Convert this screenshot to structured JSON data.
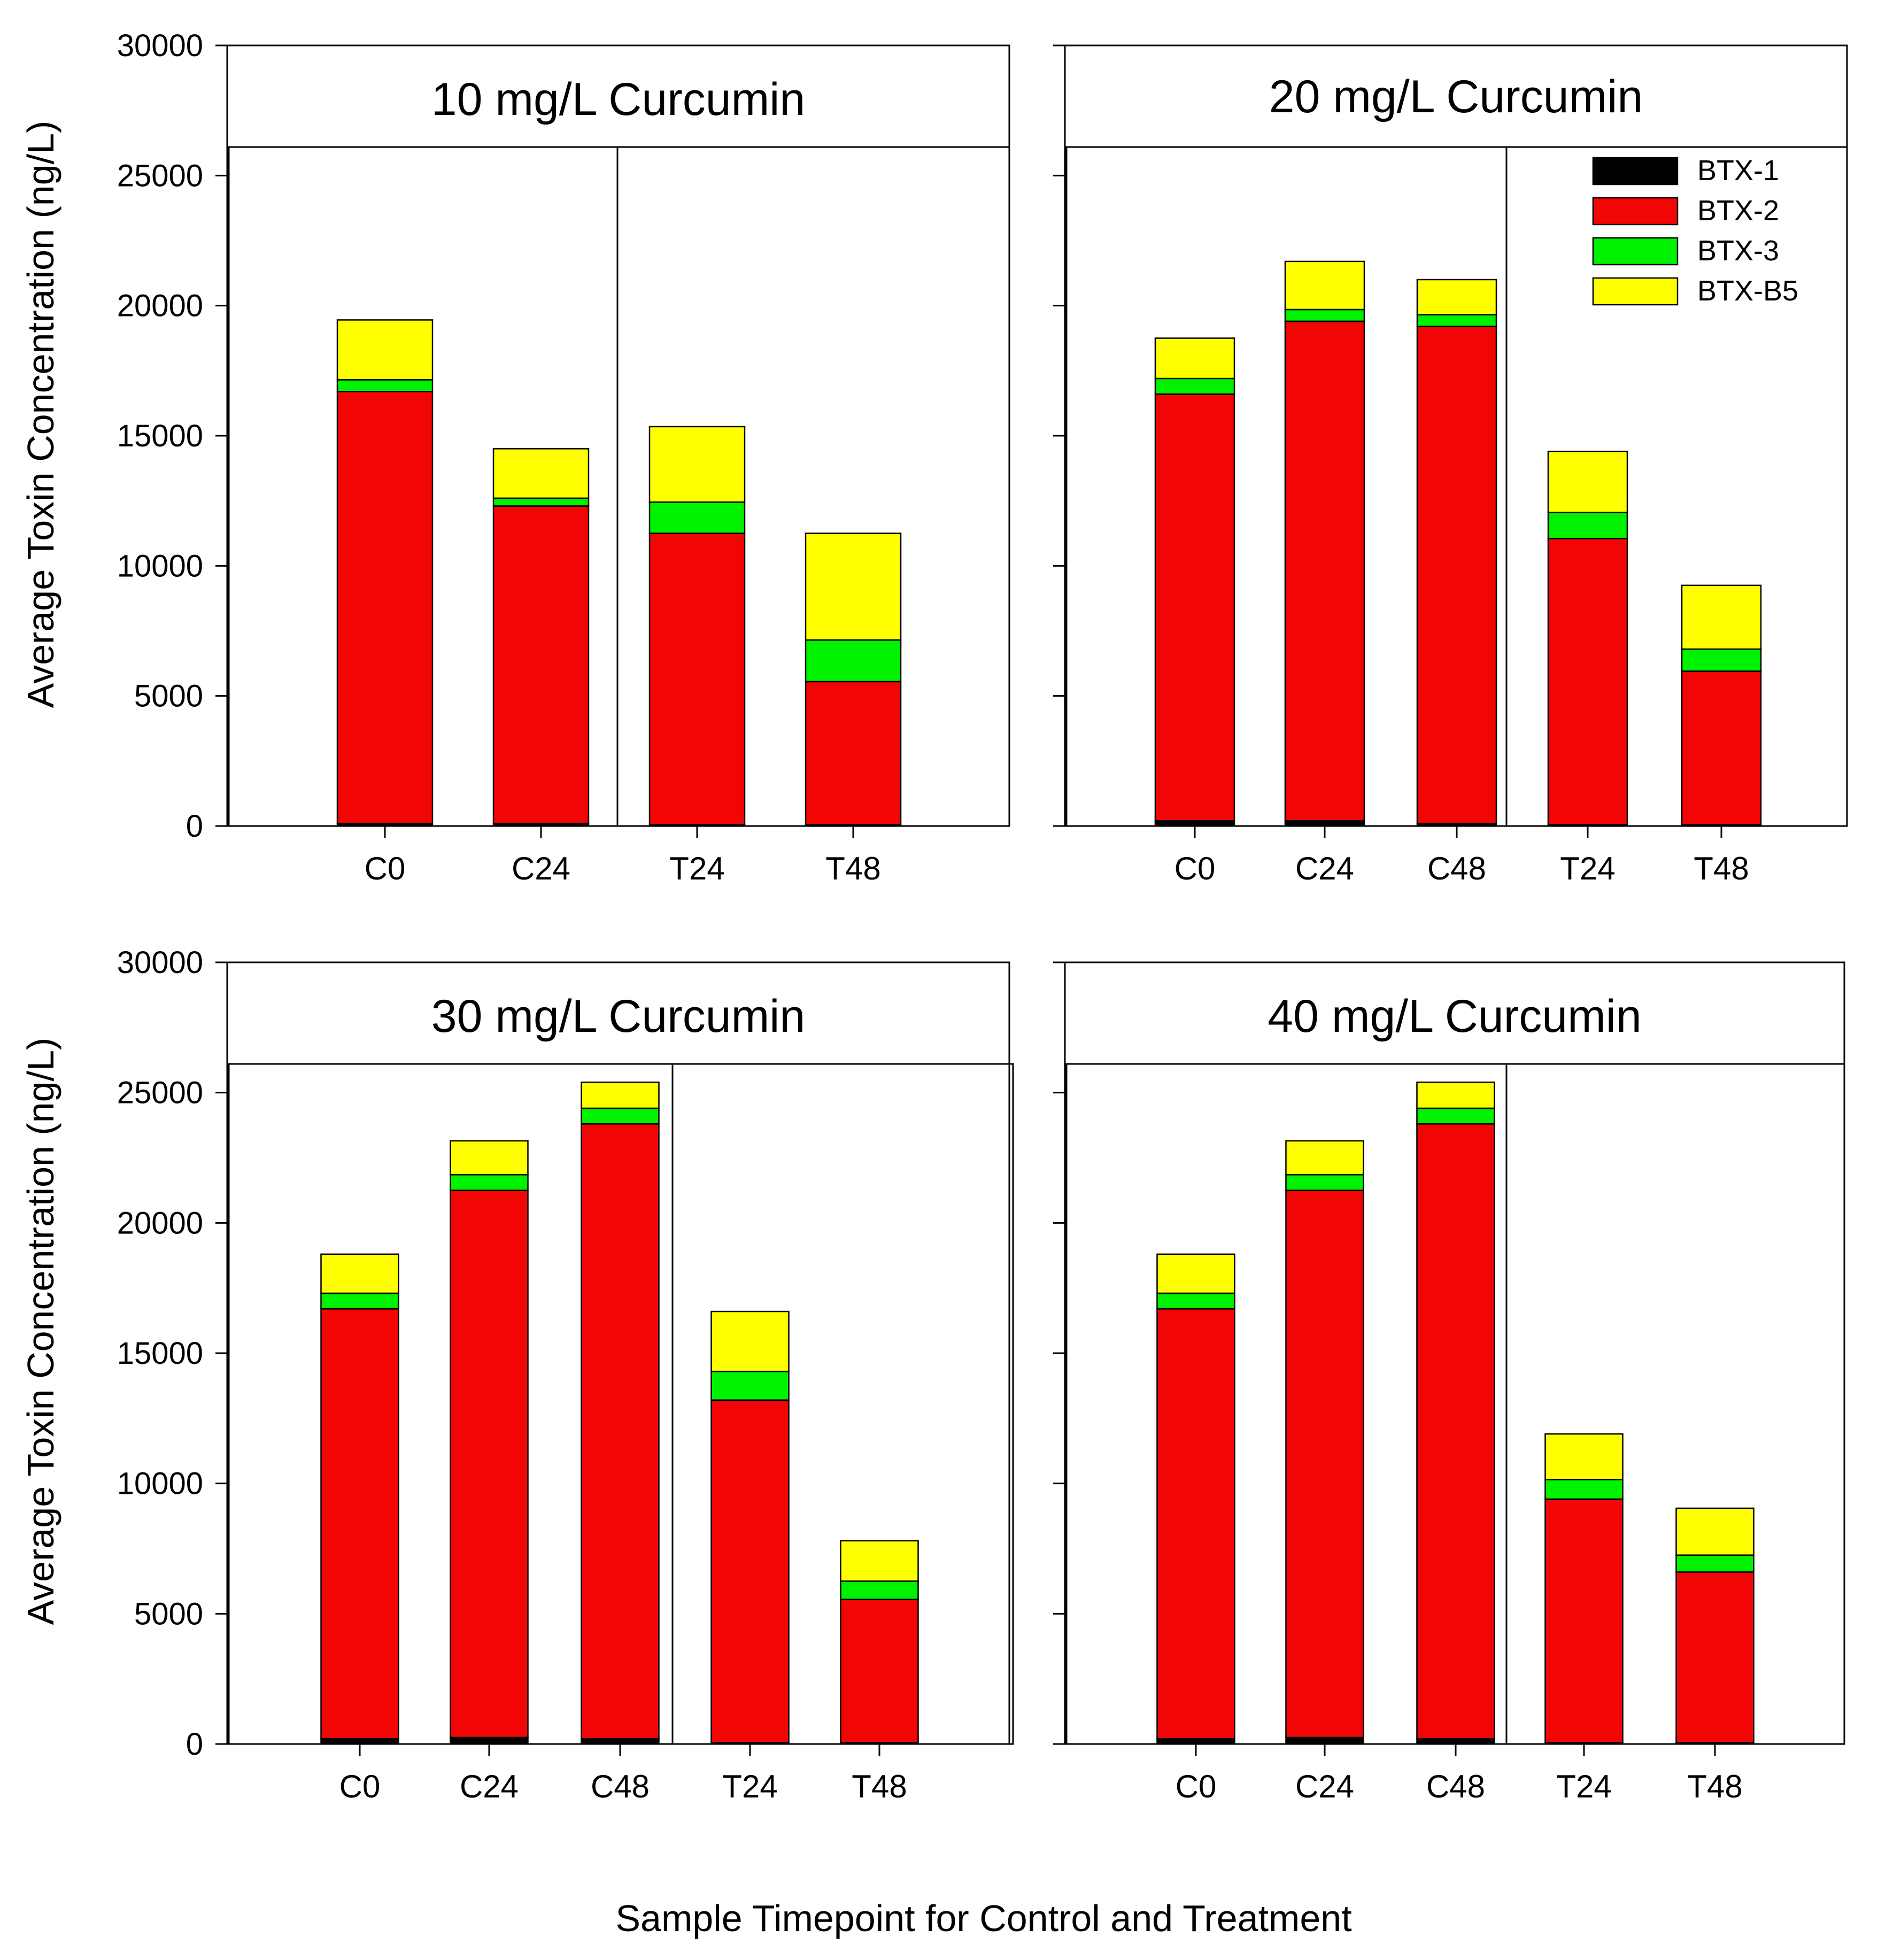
{
  "figure": {
    "ylabel": "Average Toxin Concentration (ng/L)",
    "xlabel": "Sample Timepoint for Control and Treatment",
    "colors": {
      "BTX-1": "#000000",
      "BTX-2": "#f20505",
      "BTX-3": "#00f200",
      "BTX-B5": "#ffff00"
    }
  },
  "chart_data": [
    {
      "type": "bar",
      "stacked": true,
      "title": "10 mg/L Curcumin",
      "xlabel": "Sample Timepoint for Control and Treatment",
      "ylabel": "Average Toxin Concentration (ng/L)",
      "ylim": [
        0,
        30000
      ],
      "yticks": [
        0,
        5000,
        10000,
        15000,
        20000,
        25000,
        30000
      ],
      "grid": false,
      "legend": "none",
      "categories": [
        "C0",
        "C24",
        "T24",
        "T48"
      ],
      "series": [
        {
          "name": "BTX-1",
          "values": [
            100,
            100,
            50,
            50
          ]
        },
        {
          "name": "BTX-2",
          "values": [
            16600,
            12200,
            11200,
            5500
          ]
        },
        {
          "name": "BTX-3",
          "values": [
            450,
            300,
            1200,
            1600
          ]
        },
        {
          "name": "BTX-B5",
          "values": [
            2300,
            1900,
            2900,
            4100
          ]
        }
      ]
    },
    {
      "type": "bar",
      "stacked": true,
      "title": "20 mg/L Curcumin",
      "xlabel": "Sample Timepoint for Control and Treatment",
      "ylabel": "Average Toxin Concentration (ng/L)",
      "ylim": [
        0,
        30000
      ],
      "yticks": [
        0,
        5000,
        10000,
        15000,
        20000,
        25000,
        30000
      ],
      "grid": false,
      "legend": "top-right",
      "categories": [
        "C0",
        "C24",
        "C48",
        "T24",
        "T48"
      ],
      "series": [
        {
          "name": "BTX-1",
          "values": [
            200,
            200,
            100,
            50,
            50
          ]
        },
        {
          "name": "BTX-2",
          "values": [
            16400,
            19200,
            19100,
            11000,
            5900
          ]
        },
        {
          "name": "BTX-3",
          "values": [
            600,
            450,
            450,
            1000,
            850
          ]
        },
        {
          "name": "BTX-B5",
          "values": [
            1550,
            1850,
            1350,
            2350,
            2450
          ]
        }
      ]
    },
    {
      "type": "bar",
      "stacked": true,
      "title": "30 mg/L Curcumin",
      "xlabel": "Sample Timepoint for Control and Treatment",
      "ylabel": "Average Toxin Concentration (ng/L)",
      "ylim": [
        0,
        30000
      ],
      "yticks": [
        0,
        5000,
        10000,
        15000,
        20000,
        25000,
        30000
      ],
      "grid": false,
      "legend": "none",
      "categories": [
        "C0",
        "C24",
        "C48",
        "T24",
        "T48"
      ],
      "series": [
        {
          "name": "BTX-1",
          "values": [
            200,
            250,
            200,
            50,
            50
          ]
        },
        {
          "name": "BTX-2",
          "values": [
            16500,
            21000,
            23600,
            13150,
            5500
          ]
        },
        {
          "name": "BTX-3",
          "values": [
            600,
            600,
            600,
            1100,
            700
          ]
        },
        {
          "name": "BTX-B5",
          "values": [
            1500,
            1300,
            1000,
            2300,
            1550
          ]
        }
      ]
    },
    {
      "type": "bar",
      "stacked": true,
      "title": "40 mg/L Curcumin",
      "xlabel": "Sample Timepoint for Control and Treatment",
      "ylabel": "Average Toxin Concentration (ng/L)",
      "ylim": [
        0,
        30000
      ],
      "yticks": [
        0,
        5000,
        10000,
        15000,
        20000,
        25000,
        30000
      ],
      "grid": false,
      "legend": "none",
      "categories": [
        "C0",
        "C24",
        "C48",
        "T24",
        "T48"
      ],
      "series": [
        {
          "name": "BTX-1",
          "values": [
            200,
            250,
            200,
            50,
            50
          ]
        },
        {
          "name": "BTX-2",
          "values": [
            16500,
            21000,
            23600,
            9350,
            6550
          ]
        },
        {
          "name": "BTX-3",
          "values": [
            600,
            600,
            600,
            750,
            650
          ]
        },
        {
          "name": "BTX-B5",
          "values": [
            1500,
            1300,
            1000,
            1750,
            1800
          ]
        }
      ]
    }
  ]
}
